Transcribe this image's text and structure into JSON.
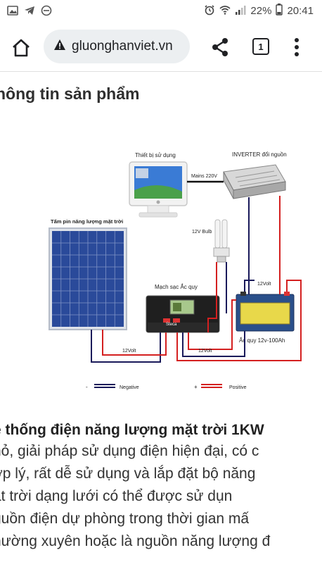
{
  "status_bar": {
    "icons_left": [
      "image-icon",
      "telegram-icon",
      "do-not-disturb-icon"
    ],
    "icons_right": [
      "alarm-icon",
      "wifi-icon",
      "signal-icon",
      "battery-icon"
    ],
    "battery": "22%",
    "time": "20:41"
  },
  "browser": {
    "url": "gluonghanviet.vn",
    "tab_count": "1"
  },
  "page": {
    "section_title": "hông tin sản phẩm",
    "diagram": {
      "device_label": "Thiết bị sử dụng",
      "inverter_label": "INVERTER đổi nguồn",
      "mains_label": "Mains 220V",
      "solar_panel_label": "Tấm pin năng lượng mặt trời",
      "bulb_label": "12V Bulb",
      "controller_label": "Mạch sạc Ắc quy",
      "controller_brand": "Steca",
      "battery_label": "Ắc quy 12v-100Ah",
      "wire_12v_a": "12Volt",
      "wire_12v_b": "12Volt",
      "wire_12v_c": "12Volt",
      "legend_negative": "Negative",
      "legend_positive": "Positive",
      "legend_minus": "-",
      "legend_plus": "+"
    },
    "headline": "ệ thống điện năng lượng mặt trời 1KW",
    "body_lines": [
      "hỏ, giải pháp sử dụng điện hiện đại, có c",
      "ợp lý, rất dễ sử dụng và lắp đặt bộ năng",
      "ặt trời dạng lưới có thể được sử dụn",
      "guồn điện dự phòng trong thời gian mấ",
      "hường xuyên hoặc là nguồn năng lượng đ"
    ]
  },
  "colors": {
    "negative_wire": "#1a1a5a",
    "positive_wire": "#d42020",
    "panel_blue": "#2a4a9a"
  }
}
